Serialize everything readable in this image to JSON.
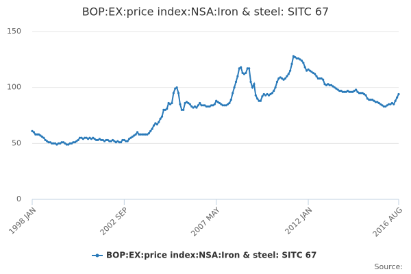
{
  "chart_data": {
    "type": "line",
    "title": "BOP:EX:price index:NSA:Iron & steel: SITC 67",
    "source": "Source:",
    "categories": [
      "1998 JAN",
      null,
      null,
      null,
      null,
      null,
      null,
      null,
      null,
      null,
      null,
      null,
      null,
      null,
      null,
      null,
      null,
      null,
      null,
      null,
      null,
      null,
      null,
      null,
      null,
      null,
      null,
      null,
      null,
      null,
      null,
      null,
      null,
      null,
      null,
      null,
      null,
      null,
      null,
      null,
      null,
      null,
      null,
      null,
      null,
      null,
      null,
      null,
      null,
      null,
      null,
      null,
      null,
      null,
      null,
      null,
      "2002 SEP",
      null,
      null,
      null,
      null,
      null,
      null,
      null,
      null,
      null,
      null,
      null,
      null,
      null,
      null,
      null,
      null,
      null,
      null,
      null,
      null,
      null,
      null,
      null,
      null,
      null,
      null,
      null,
      null,
      null,
      null,
      null,
      null,
      null,
      null,
      null,
      null,
      null,
      null,
      null,
      null,
      null,
      null,
      null,
      null,
      null,
      null,
      null,
      null,
      null,
      null,
      null,
      null,
      null,
      null,
      null,
      "2007 MAY",
      null,
      null,
      null,
      null,
      null,
      null,
      null,
      null,
      null,
      null,
      null,
      null,
      null,
      null,
      null,
      null,
      null,
      null,
      null,
      null,
      null,
      null,
      null,
      null,
      null,
      null,
      null,
      null,
      null,
      null,
      null,
      null,
      null,
      null,
      null,
      null,
      null,
      null,
      null,
      null,
      null,
      null,
      null,
      null,
      null,
      null,
      null,
      null,
      null,
      null,
      null,
      null,
      null,
      null,
      null,
      "2012 JAN",
      null,
      null,
      null,
      null,
      null,
      null,
      null,
      null,
      null,
      null,
      null,
      null,
      null,
      null,
      null,
      null,
      null,
      null,
      null,
      null,
      null,
      null,
      null,
      null,
      null,
      null,
      null,
      null,
      null,
      null,
      null,
      null,
      null,
      null,
      null,
      null,
      null,
      null,
      null,
      null,
      null,
      null,
      null,
      null,
      null,
      null,
      null,
      null,
      null,
      null,
      null,
      null,
      null,
      null,
      "2016 AUG"
    ],
    "series": [
      {
        "name": "BOP:EX:price index:NSA:Iron & steel: SITC 67",
        "color": "#2a7ab9",
        "values": [
          61,
          60,
          58,
          58,
          58,
          57,
          56,
          55,
          53,
          52,
          51,
          51,
          50,
          50,
          50,
          49,
          50,
          50,
          51,
          51,
          50,
          49,
          49,
          50,
          50,
          51,
          51,
          52,
          53,
          55,
          55,
          54,
          55,
          55,
          54,
          55,
          54,
          55,
          54,
          53,
          53,
          54,
          53,
          53,
          52,
          53,
          53,
          52,
          52,
          53,
          52,
          51,
          52,
          51,
          51,
          53,
          53,
          52,
          52,
          54,
          55,
          56,
          57,
          58,
          60,
          58,
          58,
          58,
          58,
          58,
          58,
          59,
          61,
          63,
          66,
          68,
          67,
          69,
          72,
          74,
          80,
          80,
          81,
          86,
          85,
          86,
          95,
          99,
          100,
          95,
          85,
          80,
          80,
          86,
          87,
          86,
          85,
          83,
          82,
          83,
          82,
          84,
          86,
          84,
          84,
          84,
          83,
          83,
          83,
          84,
          84,
          85,
          88,
          87,
          86,
          85,
          84,
          84,
          84,
          85,
          86,
          89,
          95,
          100,
          105,
          110,
          117,
          118,
          113,
          112,
          113,
          117,
          117,
          105,
          100,
          103,
          93,
          90,
          88,
          88,
          92,
          94,
          93,
          94,
          93,
          94,
          95,
          97,
          100,
          105,
          108,
          109,
          108,
          107,
          108,
          110,
          112,
          115,
          121,
          128,
          127,
          126,
          126,
          125,
          124,
          122,
          118,
          115,
          116,
          115,
          114,
          113,
          112,
          110,
          108,
          108,
          108,
          107,
          103,
          102,
          103,
          102,
          102,
          101,
          100,
          99,
          98,
          97,
          97,
          96,
          96,
          96,
          97,
          96,
          96,
          96,
          97,
          98,
          96,
          95,
          95,
          95,
          94,
          93,
          90,
          89,
          89,
          89,
          88,
          87,
          87,
          86,
          85,
          84,
          83,
          83,
          84,
          85,
          85,
          86,
          85,
          88,
          91,
          94
        ]
      }
    ],
    "ylim": [
      0,
      150
    ],
    "yticks": [
      0,
      50,
      100,
      150
    ],
    "grid": true,
    "legend": "bottom"
  }
}
